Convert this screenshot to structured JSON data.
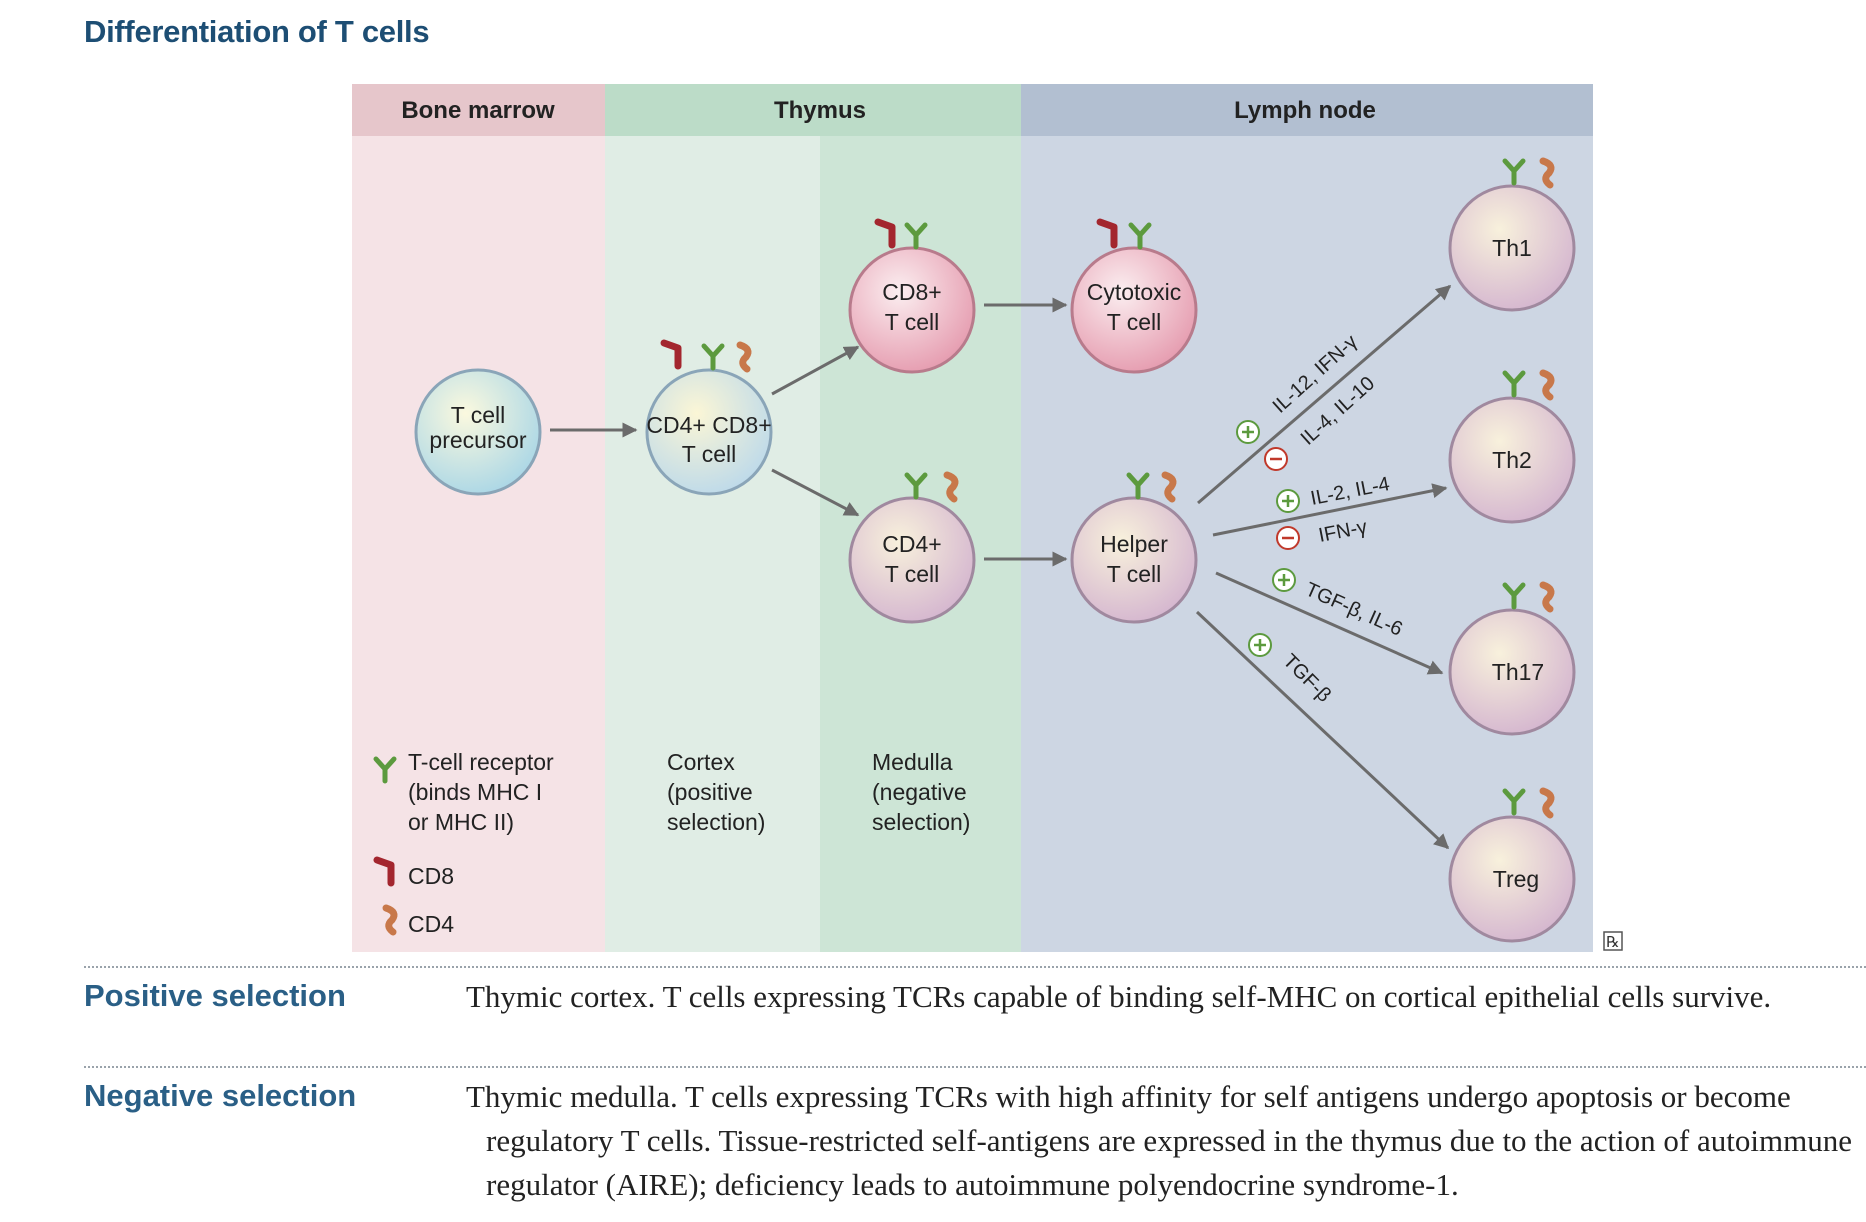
{
  "title": "Differentiation of T cells",
  "zones": {
    "bone_marrow": "Bone marrow",
    "thymus": "Thymus",
    "lymph_node": "Lymph node"
  },
  "cells": {
    "precursor": [
      "T cell",
      "precursor"
    ],
    "dp": [
      "CD4+ CD8+",
      "T cell"
    ],
    "cd8": [
      "CD8+",
      "T cell"
    ],
    "cd4": [
      "CD4+",
      "T cell"
    ],
    "cytotoxic": [
      "Cytotoxic",
      "T cell"
    ],
    "helper": [
      "Helper",
      "T cell"
    ],
    "th1": [
      "Th1"
    ],
    "th2": [
      "Th2"
    ],
    "th17": [
      "Th17"
    ],
    "treg": [
      "Treg"
    ]
  },
  "cytokines": {
    "th1_pos": "IL-12, IFN-γ",
    "th1_neg": "IL-4, IL-10",
    "th2_pos": "IL-2, IL-4",
    "th2_neg": "IFN-γ",
    "th17_pos": "TGF-β, IL-6",
    "treg_pos": "TGF-β"
  },
  "legend": {
    "tcr": [
      "T-cell receptor",
      "(binds MHC I",
      "or MHC II)"
    ],
    "cd8": "CD8",
    "cd4": "CD4",
    "cortex": [
      "Cortex",
      "(positive",
      "selection)"
    ],
    "medulla": [
      "Medulla",
      "(negative",
      "selection)"
    ]
  },
  "rx_badge": "℞",
  "colors": {
    "bone_marrow_bg": "#f5e3e6",
    "bone_marrow_header": "#e6c6cb",
    "cortex_bg": "#e0ede5",
    "medulla_bg": "#cde5d6",
    "thymus_header": "#bcdcc8",
    "lymph_bg": "#cdd6e3",
    "lymph_header": "#b2bfd1",
    "tcr": "#5c9a3e",
    "cd8": "#a3262e",
    "cd4": "#c8784a",
    "arrow": "#6b6b6b",
    "title": "#1d4e74"
  },
  "rows": [
    {
      "label": "Positive selection",
      "text": "Thymic cortex. T cells expressing TCRs capable of binding self-MHC on cortical epithelial cells survive."
    },
    {
      "label": "Negative selection",
      "text": "Thymic medulla. T cells expressing TCRs with high affinity for self antigens undergo apoptosis or become regulatory T cells. Tissue-restricted self-antigens are expressed in the thymus due to the action of autoimmune regulator (AIRE); deficiency leads to autoimmune polyendocrine syndrome-1."
    }
  ]
}
